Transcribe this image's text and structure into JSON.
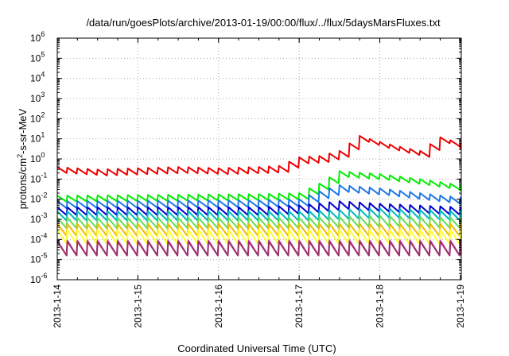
{
  "chart_data": {
    "type": "line",
    "title": "/data/run/goesPlots/archive/2013-01-19/00:00/flux/../flux/5daysMarsFluxes.txt",
    "xlabel": "Coordinated Universal Time (UTC)",
    "ylabel_parts": [
      "protons/cm",
      "2",
      "-s-sr-MeV"
    ],
    "yscale": "log",
    "ylim": [
      1e-06,
      1000000.0
    ],
    "y_ticks": [
      {
        "base": "10",
        "exp": "6",
        "value": 1000000.0
      },
      {
        "base": "10",
        "exp": "5",
        "value": 100000.0
      },
      {
        "base": "10",
        "exp": "4",
        "value": 10000.0
      },
      {
        "base": "10",
        "exp": "3",
        "value": 1000.0
      },
      {
        "base": "10",
        "exp": "2",
        "value": 100.0
      },
      {
        "base": "10",
        "exp": "1",
        "value": 10.0
      },
      {
        "base": "10",
        "exp": "0",
        "value": 1.0
      },
      {
        "base": "10",
        "exp": "-1",
        "value": 0.1
      },
      {
        "base": "10",
        "exp": "-2",
        "value": 0.01
      },
      {
        "base": "10",
        "exp": "-3",
        "value": 0.001
      },
      {
        "base": "10",
        "exp": "-4",
        "value": 0.0001
      },
      {
        "base": "10",
        "exp": "-5",
        "value": 1e-05
      },
      {
        "base": "10",
        "exp": "-6",
        "value": 1e-06
      }
    ],
    "xlim": [
      "2013-01-14T00:00",
      "2013-01-19T00:15"
    ],
    "x_ticks": [
      {
        "label": "2013-1-14",
        "value": "2013-01-14T00:00"
      },
      {
        "label": "2013-1-15",
        "value": "2013-01-15T00:00"
      },
      {
        "label": "2013-1-16",
        "value": "2013-01-16T00:00"
      },
      {
        "label": "2013-1-17",
        "value": "2013-01-17T00:00"
      },
      {
        "label": "2013-1-18",
        "value": "2013-01-18T00:00"
      },
      {
        "label": "2013-1-19",
        "value": "2013-01-19T00:00"
      }
    ],
    "grid": true,
    "legend": "none",
    "series": [
      {
        "color": "#ee0000",
        "period_hours": 3,
        "x_start": "2013-01-14T00:00",
        "x_end": "2013-01-19T00:00",
        "x": [
          "2013-01-14T00:00",
          "2013-01-14T12:00",
          "2013-01-15T00:00",
          "2013-01-15T12:00",
          "2013-01-16T00:00",
          "2013-01-16T12:00",
          "2013-01-16T18:00",
          "2013-01-17T00:00",
          "2013-01-17T06:00",
          "2013-01-17T12:00",
          "2013-01-17T18:00",
          "2013-01-18T00:00",
          "2013-01-18T06:00",
          "2013-01-18T12:00",
          "2013-01-18T18:00",
          "2013-01-19T00:00"
        ],
        "y": [
          0.4,
          0.3,
          0.35,
          0.4,
          0.35,
          0.4,
          0.45,
          1.2,
          1.4,
          2.5,
          14,
          7,
          4,
          2.5,
          12,
          6
        ],
        "sawtooth_ratio": 0.5
      },
      {
        "color": "#00ee00",
        "period_hours": 3,
        "x_start": "2013-01-14T00:00",
        "x_end": "2013-01-19T00:00",
        "x": [
          "2013-01-14T00:00",
          "2013-01-16T12:00",
          "2013-01-17T00:00",
          "2013-01-17T06:00",
          "2013-01-17T12:00",
          "2013-01-18T00:00",
          "2013-01-18T12:00",
          "2013-01-19T00:00"
        ],
        "y": [
          0.015,
          0.018,
          0.02,
          0.06,
          0.25,
          0.18,
          0.1,
          0.05
        ],
        "sawtooth_ratio": 0.5
      },
      {
        "color": "#1e78e6",
        "period_hours": 3,
        "x_start": "2013-01-14T00:00",
        "x_end": "2013-01-19T00:00",
        "x": [
          "2013-01-14T00:00",
          "2013-01-16T12:00",
          "2013-01-17T00:00",
          "2013-01-17T06:00",
          "2013-01-17T12:00",
          "2013-01-18T00:00",
          "2013-01-18T12:00",
          "2013-01-19T00:00"
        ],
        "y": [
          0.008,
          0.009,
          0.01,
          0.025,
          0.05,
          0.035,
          0.02,
          0.012
        ],
        "sawtooth_ratio": 0.45
      },
      {
        "color": "#0000cc",
        "period_hours": 3,
        "x_start": "2013-01-14T00:00",
        "x_end": "2013-01-19T00:00",
        "x": [
          "2013-01-14T00:00",
          "2013-01-16T12:00",
          "2013-01-17T00:00",
          "2013-01-17T12:00",
          "2013-01-18T00:00",
          "2013-01-19T00:00"
        ],
        "y": [
          0.004,
          0.004,
          0.005,
          0.008,
          0.006,
          0.004
        ],
        "sawtooth_ratio": 0.4
      },
      {
        "color": "#00bbbb",
        "period_hours": 3,
        "x_start": "2013-01-14T00:00",
        "x_end": "2013-01-19T00:00",
        "x": [
          "2013-01-14T00:00",
          "2013-01-17T00:00",
          "2013-01-18T00:00",
          "2013-01-19T00:00"
        ],
        "y": [
          0.0025,
          0.0025,
          0.0035,
          0.0025
        ],
        "sawtooth_ratio": 0.35
      },
      {
        "color": "#66dd55",
        "period_hours": 3,
        "x_start": "2013-01-14T00:00",
        "x_end": "2013-01-19T00:00",
        "x": [
          "2013-01-14T00:00",
          "2013-01-17T00:00",
          "2013-01-18T00:00",
          "2013-01-19T00:00"
        ],
        "y": [
          0.0012,
          0.0012,
          0.0015,
          0.0012
        ],
        "sawtooth_ratio": 0.3
      },
      {
        "color": "#eebb00",
        "period_hours": 3,
        "x_start": "2013-01-14T00:00",
        "x_end": "2013-01-19T00:00",
        "x": [
          "2013-01-14T00:00",
          "2013-01-19T00:00"
        ],
        "y": [
          0.0006,
          0.0006
        ],
        "sawtooth_ratio": 0.25
      },
      {
        "color": "#ffff33",
        "period_hours": 3,
        "x_start": "2013-01-14T00:00",
        "x_end": "2013-01-19T00:00",
        "x": [
          "2013-01-14T00:00",
          "2013-01-19T00:00"
        ],
        "y": [
          0.0003,
          0.0003
        ],
        "sawtooth_ratio": 0.2
      },
      {
        "color": "#dd55dd",
        "period_hours": 3,
        "x_start": "2013-01-14T00:00",
        "x_end": "2013-01-19T00:00",
        "x": [
          "2013-01-14T00:00",
          "2013-01-19T00:00"
        ],
        "y": [
          9e-05,
          9e-05
        ],
        "sawtooth_ratio": 0.18
      },
      {
        "color": "#993366",
        "period_hours": 3,
        "x_start": "2013-01-14T00:00",
        "x_end": "2013-01-19T00:00",
        "x": [
          "2013-01-14T00:00",
          "2013-01-19T00:00"
        ],
        "y": [
          8e-05,
          8e-05
        ],
        "sawtooth_ratio": 0.2
      }
    ]
  }
}
